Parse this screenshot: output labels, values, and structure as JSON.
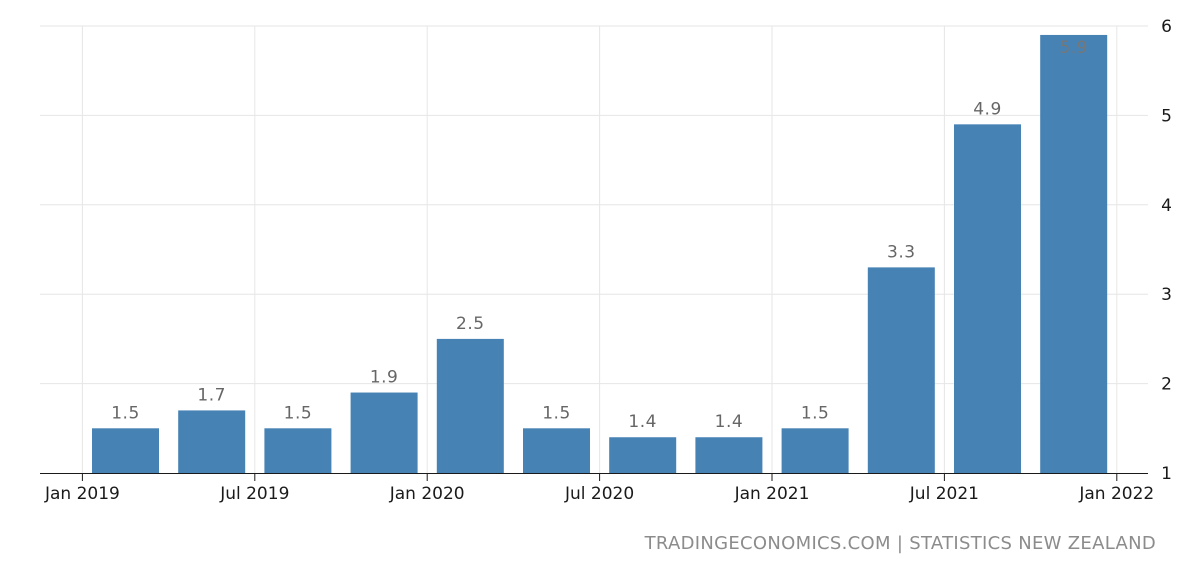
{
  "chart_data": {
    "type": "bar",
    "categories": [
      "Q1 2019",
      "Q2 2019",
      "Q3 2019",
      "Q4 2019",
      "Q1 2020",
      "Q2 2020",
      "Q3 2020",
      "Q4 2020",
      "Q1 2021",
      "Q2 2021",
      "Q3 2021",
      "Q4 2021"
    ],
    "values": [
      1.5,
      1.7,
      1.5,
      1.9,
      2.5,
      1.5,
      1.4,
      1.4,
      1.5,
      3.3,
      4.9,
      5.9
    ],
    "data_labels": [
      "1.5",
      "1.7",
      "1.5",
      "1.9",
      "2.5",
      "1.5",
      "1.4",
      "1.4",
      "1.5",
      "3.3",
      "4.9",
      "5.9"
    ],
    "x_tick_labels": [
      "Jan 2019",
      "Jul 2019",
      "Jan 2020",
      "Jul 2020",
      "Jan 2021",
      "Jul 2021",
      "Jan 2022"
    ],
    "y_ticks": [
      1,
      2,
      3,
      4,
      5,
      6
    ],
    "ylim": [
      1,
      6
    ],
    "y_axis_side": "right",
    "grid": true,
    "bar_color": "#4682b4",
    "title": "",
    "xlabel": "",
    "ylabel": ""
  },
  "source": "TRADINGECONOMICS.COM | STATISTICS NEW ZEALAND"
}
